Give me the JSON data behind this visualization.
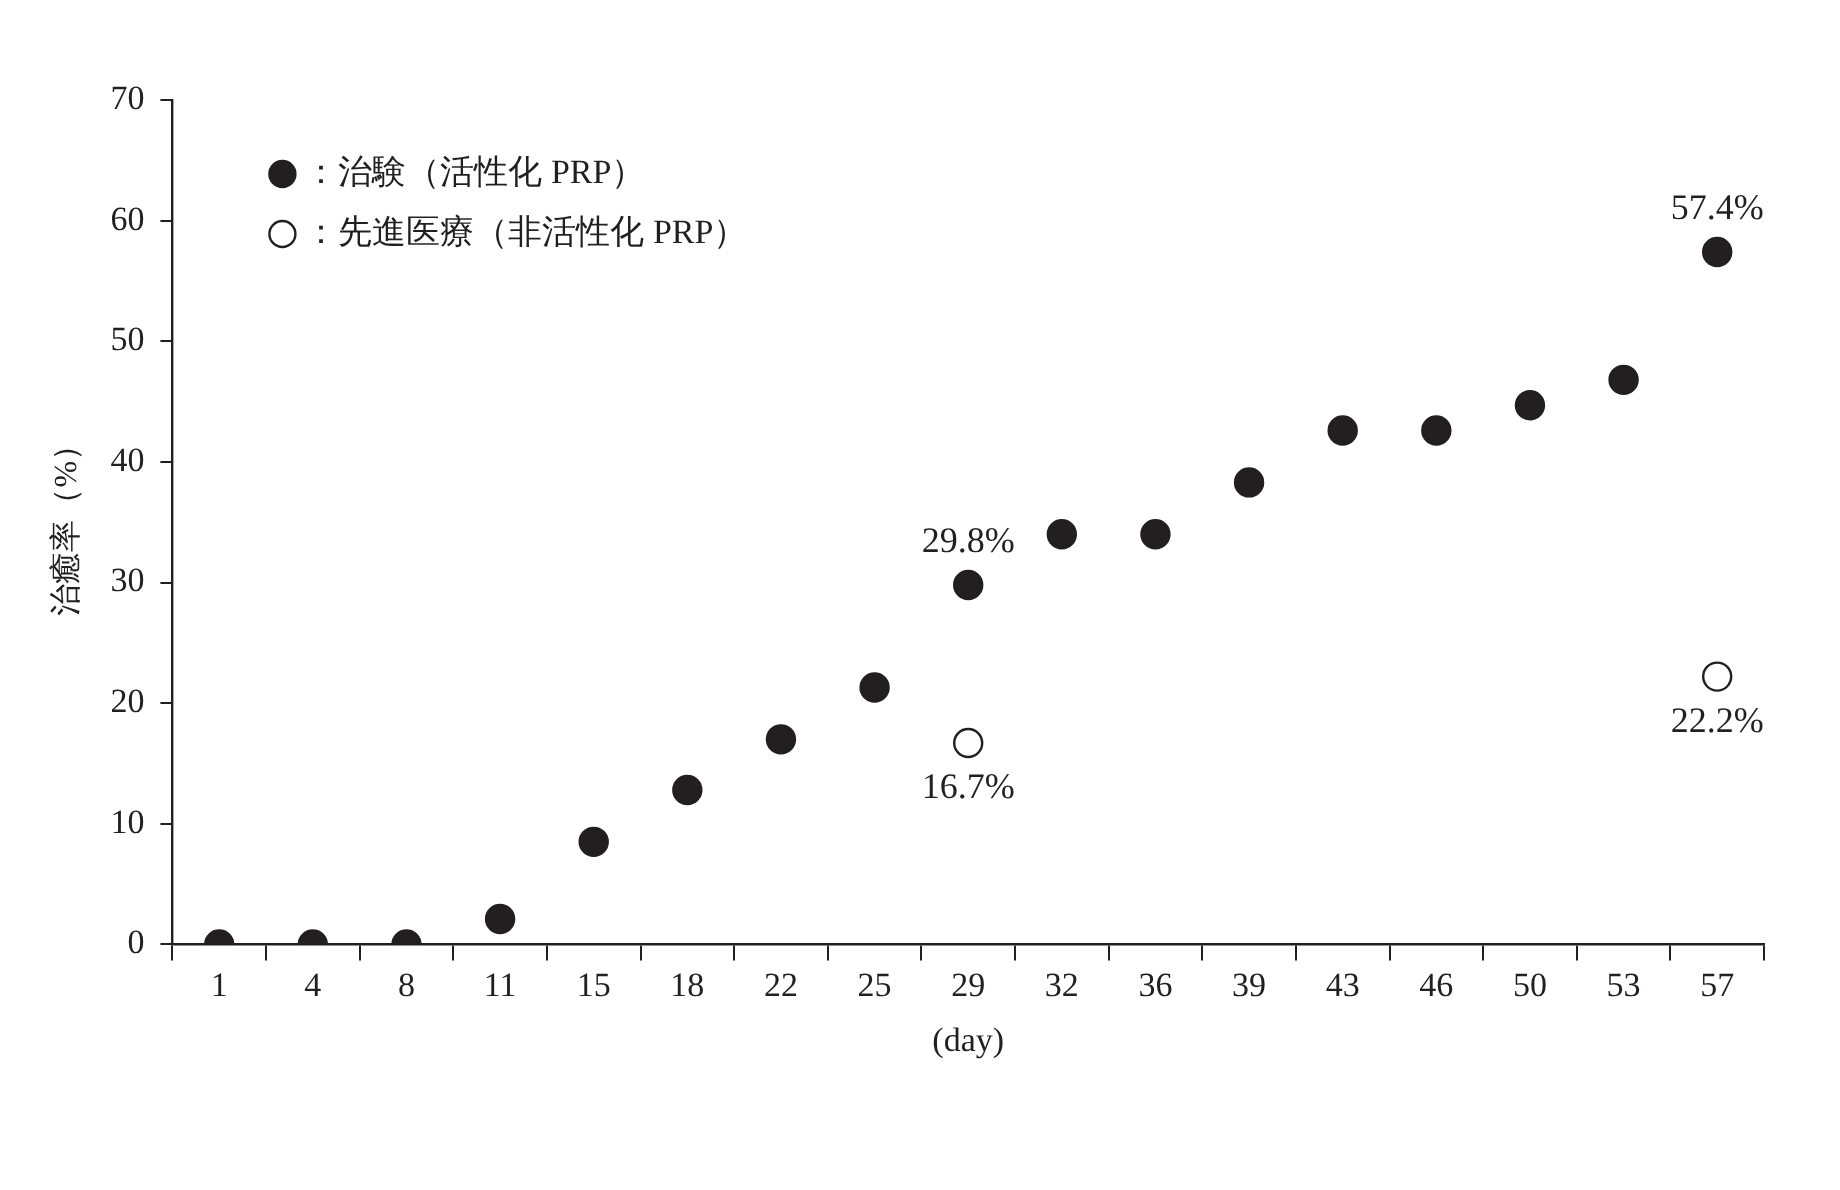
{
  "chart_data": {
    "type": "scatter",
    "ylabel": "治癒率（%）",
    "xlabel": "(day)",
    "categories": [
      "1",
      "4",
      "8",
      "11",
      "15",
      "18",
      "22",
      "25",
      "29",
      "32",
      "36",
      "39",
      "43",
      "46",
      "50",
      "53",
      "57"
    ],
    "series": [
      {
        "name": "：治験（活性化 PRP）",
        "color": "#231f20",
        "values": [
          0,
          0,
          0,
          2.1,
          8.5,
          12.8,
          17.0,
          21.3,
          29.8,
          34.0,
          34.0,
          38.3,
          42.6,
          42.6,
          44.7,
          46.8,
          57.4
        ],
        "value_labels": [
          null,
          null,
          null,
          null,
          null,
          null,
          null,
          null,
          "29.8%",
          null,
          null,
          null,
          null,
          null,
          null,
          null,
          "57.4%"
        ]
      },
      {
        "name": "：先進医療（非活性化 PRP）",
        "color": "#ffffff",
        "values": [
          null,
          null,
          null,
          null,
          null,
          null,
          null,
          null,
          16.7,
          null,
          null,
          null,
          null,
          null,
          null,
          null,
          22.2
        ],
        "value_labels": [
          null,
          null,
          null,
          null,
          null,
          null,
          null,
          null,
          "16.7%",
          null,
          null,
          null,
          null,
          null,
          null,
          null,
          "22.2%"
        ]
      }
    ],
    "ylim": [
      0,
      70
    ],
    "yticks": [
      0,
      10,
      20,
      30,
      40,
      50,
      60,
      70
    ],
    "grid": false,
    "legend": "top left",
    "marker": "circle"
  }
}
